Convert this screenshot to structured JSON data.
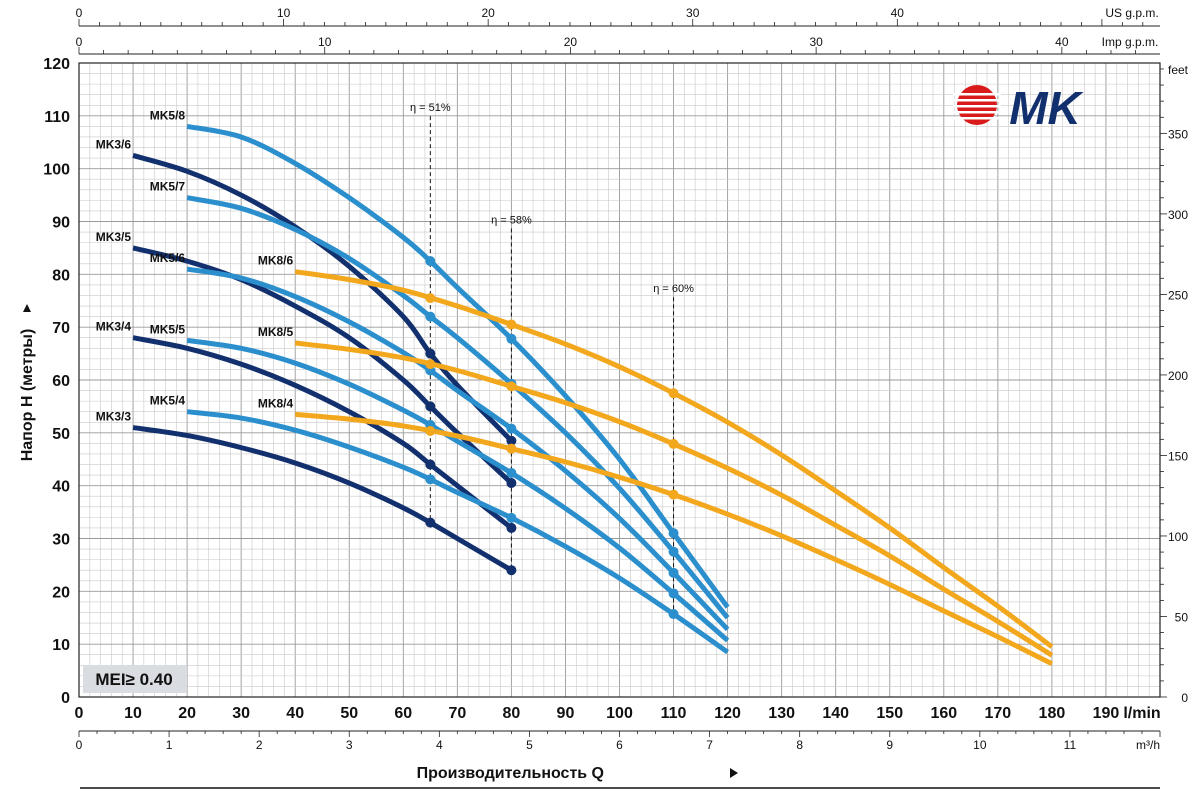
{
  "chart_data": {
    "type": "line",
    "title": "",
    "xlabel": "Производительность Q",
    "ylabel": "Напор H (метры)",
    "x_unit": "l/min",
    "x_unit_m3h": "m³/h",
    "x_unit_usgpm": "US g.p.m.",
    "x_unit_impgpm": "Imp g.p.m.",
    "y_unit_right": "feet",
    "xlim": [
      0,
      200
    ],
    "ylim": [
      0,
      120
    ],
    "x_ticks": [
      "0",
      "10",
      "20",
      "30",
      "40",
      "50",
      "60",
      "70",
      "80",
      "90",
      "100",
      "110",
      "120",
      "130",
      "140",
      "150",
      "160",
      "170",
      "180",
      "190"
    ],
    "y_ticks": [
      "0",
      "10",
      "20",
      "30",
      "40",
      "50",
      "60",
      "70",
      "80",
      "90",
      "100",
      "110",
      "120"
    ],
    "m3h_ticks": [
      "0",
      "1",
      "2",
      "3",
      "4",
      "5",
      "6",
      "7",
      "8",
      "9",
      "10",
      "11"
    ],
    "usgpm_ticks": [
      "0",
      "10",
      "20",
      "30",
      "40"
    ],
    "impgpm_ticks": [
      "0",
      "10",
      "20",
      "30",
      "40"
    ],
    "feet_ticks": [
      "0",
      "50",
      "100",
      "150",
      "200",
      "250",
      "300",
      "350"
    ],
    "grid": true,
    "mei_label": "MEI≥ 0.40",
    "logo_text": "MK",
    "series": [
      {
        "name": "MK3/6",
        "color": "#13306e",
        "x": [
          10,
          20,
          30,
          40,
          50,
          60,
          65,
          70,
          80
        ],
        "y": [
          102.5,
          99.5,
          95,
          89,
          81.5,
          72,
          65,
          59,
          48.5
        ]
      },
      {
        "name": "MK3/5",
        "color": "#13306e",
        "x": [
          10,
          20,
          30,
          40,
          50,
          60,
          65,
          70,
          80
        ],
        "y": [
          85,
          82.5,
          79,
          74,
          68,
          60,
          55,
          50,
          40.5
        ]
      },
      {
        "name": "MK3/4",
        "color": "#13306e",
        "x": [
          10,
          20,
          30,
          40,
          50,
          60,
          65,
          70,
          80
        ],
        "y": [
          68,
          66,
          63,
          59,
          54,
          48,
          44,
          40,
          32
        ]
      },
      {
        "name": "MK3/3",
        "color": "#13306e",
        "x": [
          10,
          20,
          30,
          40,
          50,
          60,
          65,
          70,
          80
        ],
        "y": [
          51,
          49.5,
          47.2,
          44.3,
          40.5,
          35.8,
          33,
          30,
          24
        ]
      },
      {
        "name": "MK5/8",
        "color": "#2b8fcd",
        "x": [
          20,
          30,
          40,
          50,
          60,
          65,
          70,
          80,
          90,
          100,
          110,
          120
        ],
        "y": [
          108,
          106,
          101,
          94.5,
          87,
          82.5,
          77.5,
          67.8,
          57,
          45,
          31,
          17
        ]
      },
      {
        "name": "MK5/7",
        "color": "#2b8fcd",
        "x": [
          20,
          30,
          40,
          50,
          60,
          65,
          70,
          80,
          90,
          100,
          110,
          120
        ],
        "y": [
          94.5,
          92.5,
          88.5,
          83,
          76,
          72,
          68,
          59.3,
          50,
          39.5,
          27.5,
          15
        ]
      },
      {
        "name": "MK5/6",
        "color": "#2b8fcd",
        "x": [
          20,
          30,
          40,
          50,
          60,
          65,
          70,
          80,
          90,
          100,
          110,
          120
        ],
        "y": [
          81,
          79.3,
          75.8,
          71,
          65.2,
          61.8,
          58,
          50.8,
          42.8,
          33.8,
          23.5,
          12.8
        ]
      },
      {
        "name": "MK5/5",
        "color": "#2b8fcd",
        "x": [
          20,
          30,
          40,
          50,
          60,
          65,
          70,
          80,
          90,
          100,
          110,
          120
        ],
        "y": [
          67.5,
          66,
          63.2,
          59.2,
          54.3,
          51.5,
          48.4,
          42.4,
          35.7,
          28.2,
          19.6,
          10.7
        ]
      },
      {
        "name": "MK5/4",
        "color": "#2b8fcd",
        "x": [
          20,
          30,
          40,
          50,
          60,
          65,
          70,
          80,
          90,
          100,
          110,
          120
        ],
        "y": [
          54,
          52.8,
          50.5,
          47.3,
          43.5,
          41.2,
          38.7,
          33.9,
          28.5,
          22.5,
          15.7,
          8.5
        ]
      },
      {
        "name": "MK8/6",
        "color": "#f2a71c",
        "x": [
          40,
          50,
          60,
          70,
          80,
          90,
          100,
          110,
          120,
          130,
          140,
          150,
          160,
          170,
          180
        ],
        "y": [
          80.5,
          79,
          77,
          74,
          70.5,
          66.8,
          62.5,
          57.5,
          52,
          45.8,
          39,
          32,
          24.5,
          17.2,
          9.5
        ]
      },
      {
        "name": "MK8/5",
        "color": "#f2a71c",
        "x": [
          40,
          50,
          60,
          70,
          80,
          90,
          100,
          110,
          120,
          130,
          140,
          150,
          160,
          170,
          180
        ],
        "y": [
          67,
          65.8,
          64.2,
          61.8,
          58.8,
          55.7,
          52.1,
          47.9,
          43.3,
          38.2,
          32.5,
          26.7,
          20.4,
          14.3,
          7.9
        ]
      },
      {
        "name": "MK8/4",
        "color": "#f2a71c",
        "x": [
          40,
          50,
          60,
          70,
          80,
          90,
          100,
          110,
          120,
          130,
          140,
          150,
          160,
          170,
          180
        ],
        "y": [
          53.5,
          52.6,
          51.3,
          49.4,
          47,
          44.5,
          41.6,
          38.3,
          34.6,
          30.5,
          26,
          21.3,
          16.3,
          11.4,
          6.3
        ]
      }
    ],
    "efficiency_markers": [
      {
        "label": "η = 51%",
        "x": 65
      },
      {
        "label": "η = 58%",
        "x": 80
      },
      {
        "label": "η = 60%",
        "x": 110
      }
    ]
  }
}
